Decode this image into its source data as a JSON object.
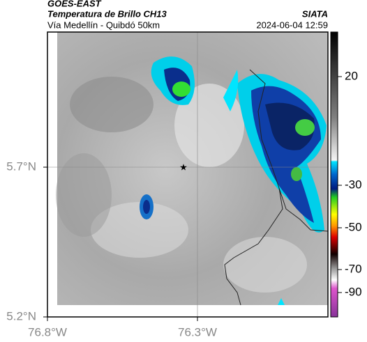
{
  "header": {
    "satellite": "GOES-EAST",
    "product": "Temperatura de Brillo CH13",
    "source": "SIATA",
    "region": "Vía Medellín - Quibdó 50km",
    "timestamp": "2024-06-04 12:59"
  },
  "map": {
    "xticks": [
      "76.8°W",
      "76.3°W"
    ],
    "yticks": [
      "5.7°N",
      "5.2°N"
    ]
  },
  "colorbar": {
    "ticks": [
      "20",
      "-30",
      "-50",
      "-70",
      "-90"
    ]
  }
}
